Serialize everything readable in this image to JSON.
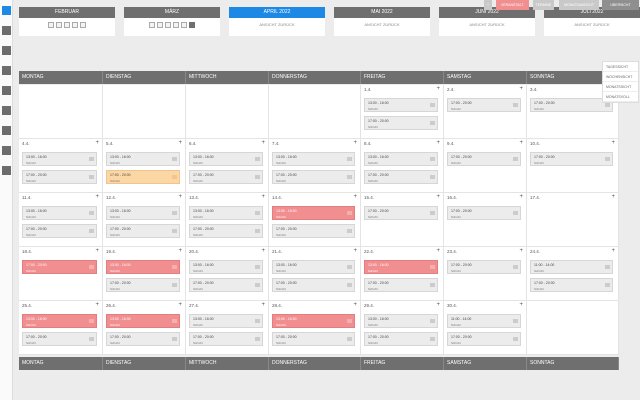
{
  "sidebar": {
    "items": [
      {
        "name": "calendar-icon",
        "active": true
      },
      {
        "name": "building-icon"
      },
      {
        "name": "user-icon"
      },
      {
        "name": "mail-icon"
      },
      {
        "name": "pie-chart-icon"
      },
      {
        "name": "clock-icon"
      },
      {
        "name": "star-icon"
      },
      {
        "name": "gear-icon"
      },
      {
        "name": "logout-icon"
      }
    ]
  },
  "months": [
    {
      "label": "FEBRUAR",
      "sub": "",
      "weeks": [
        "",
        "",
        "",
        "",
        ""
      ],
      "sel": -1,
      "active": false
    },
    {
      "label": "MÄRZ",
      "sub": "",
      "weeks": [
        "",
        "",
        "",
        "",
        "",
        ""
      ],
      "sel": 5,
      "active": false
    },
    {
      "label": "APRIL 2022",
      "sub": "ANSICHT ZURÜCK",
      "weeks": [],
      "sel": -1,
      "active": true
    },
    {
      "label": "MAI 2022",
      "sub": "ANSICHT ZURÜCK",
      "weeks": [],
      "sel": -1,
      "active": false
    },
    {
      "label": "JUNI 2022",
      "sub": "ANSICHT ZURÜCK",
      "weeks": [],
      "sel": -1,
      "active": false
    },
    {
      "label": "JULI 2022",
      "sub": "ANSICHT ZURÜCK",
      "weeks": [],
      "sel": -1,
      "active": false
    }
  ],
  "toolbar": {
    "buttons": [
      {
        "label": "+",
        "color": "#c9c9c9"
      },
      {
        "label": "VERANSTALT.",
        "color": "#f08e90"
      },
      {
        "label": "TERMINE",
        "color": "#c9c9c9"
      },
      {
        "label": "MONATSANSICHT",
        "color": "#c9c9c9"
      },
      {
        "label": "ÜBERSICHT",
        "color": "#8f8f8f"
      }
    ]
  },
  "menu": [
    "TAGESSICHT",
    "WOCHENSICHT",
    "MONATSSICHT",
    "MONATSVOLL"
  ],
  "weekdays": [
    "MONTAG",
    "DIENSTAG",
    "MITTWOCH",
    "DONNERSTAG",
    "FREITAG",
    "SAMSTAG",
    "SONNTAG"
  ],
  "weeks": [
    [
      {
        "day": "",
        "events": []
      },
      {
        "day": "",
        "events": []
      },
      {
        "day": "",
        "events": []
      },
      {
        "day": "",
        "events": []
      },
      {
        "day": "1.4.",
        "events": [
          {
            "time": "13:00 - 16:00",
            "sub": "Schicht",
            "color": "grey"
          },
          {
            "time": "17:00 - 20:00",
            "sub": "Schicht",
            "color": "grey"
          }
        ]
      },
      {
        "day": "2.4.",
        "events": [
          {
            "time": "17:00 - 20:00",
            "sub": "Schicht",
            "color": "grey"
          }
        ]
      },
      {
        "day": "3.4.",
        "events": [
          {
            "time": "17:00 - 20:00",
            "sub": "Schicht",
            "color": "grey"
          }
        ]
      }
    ],
    [
      {
        "day": "4.4.",
        "events": [
          {
            "time": "13:00 - 16:00",
            "sub": "Schicht",
            "color": "grey"
          },
          {
            "time": "17:00 - 20:00",
            "sub": "Schicht",
            "color": "grey"
          }
        ]
      },
      {
        "day": "5.4.",
        "events": [
          {
            "time": "13:00 - 16:00",
            "sub": "Schicht",
            "color": "grey"
          },
          {
            "time": "17:00 - 20:00",
            "sub": "Schicht",
            "color": "orange"
          }
        ]
      },
      {
        "day": "6.4.",
        "events": [
          {
            "time": "13:00 - 16:00",
            "sub": "Schicht",
            "color": "grey"
          },
          {
            "time": "17:00 - 20:00",
            "sub": "Schicht",
            "color": "grey"
          }
        ]
      },
      {
        "day": "7.4.",
        "events": [
          {
            "time": "13:00 - 16:00",
            "sub": "Schicht",
            "color": "grey"
          },
          {
            "time": "17:00 - 20:00",
            "sub": "Schicht",
            "color": "grey"
          }
        ]
      },
      {
        "day": "8.4.",
        "events": [
          {
            "time": "13:00 - 16:00",
            "sub": "Schicht",
            "color": "grey"
          },
          {
            "time": "17:00 - 20:00",
            "sub": "Schicht",
            "color": "grey"
          }
        ]
      },
      {
        "day": "9.4.",
        "events": [
          {
            "time": "17:00 - 20:00",
            "sub": "Schicht",
            "color": "grey"
          }
        ]
      },
      {
        "day": "10.4.",
        "events": [
          {
            "time": "17:00 - 20:00",
            "sub": "Schicht",
            "color": "grey"
          }
        ]
      }
    ],
    [
      {
        "day": "11.4.",
        "events": [
          {
            "time": "13:00 - 16:00",
            "sub": "Schicht",
            "color": "grey"
          },
          {
            "time": "17:00 - 20:00",
            "sub": "Schicht",
            "color": "grey"
          }
        ]
      },
      {
        "day": "12.4.",
        "events": [
          {
            "time": "13:00 - 16:00",
            "sub": "Schicht",
            "color": "grey"
          },
          {
            "time": "17:00 - 20:00",
            "sub": "Schicht",
            "color": "grey"
          }
        ]
      },
      {
        "day": "13.4.",
        "events": [
          {
            "time": "13:00 - 16:00",
            "sub": "Schicht",
            "color": "grey"
          },
          {
            "time": "17:00 - 20:00",
            "sub": "Schicht",
            "color": "grey"
          }
        ]
      },
      {
        "day": "14.4.",
        "events": [
          {
            "time": "13:00 - 16:00",
            "sub": "Schicht",
            "color": "red"
          },
          {
            "time": "17:00 - 20:00",
            "sub": "Schicht",
            "color": "grey"
          }
        ]
      },
      {
        "day": "15.4.",
        "events": [
          {
            "time": "17:00 - 20:00",
            "sub": "Schicht",
            "color": "grey"
          }
        ]
      },
      {
        "day": "16.4.",
        "events": [
          {
            "time": "17:00 - 20:00",
            "sub": "Schicht",
            "color": "grey"
          }
        ]
      },
      {
        "day": "17.4.",
        "events": []
      }
    ],
    [
      {
        "day": "18.4.",
        "events": [
          {
            "time": "17:00 - 20:00",
            "sub": "Schicht",
            "color": "red"
          }
        ]
      },
      {
        "day": "19.4.",
        "events": [
          {
            "time": "13:00 - 16:00",
            "sub": "Schicht",
            "color": "red"
          },
          {
            "time": "17:00 - 20:00",
            "sub": "Schicht",
            "color": "grey"
          }
        ]
      },
      {
        "day": "20.4.",
        "events": [
          {
            "time": "13:00 - 16:00",
            "sub": "Schicht",
            "color": "grey"
          },
          {
            "time": "17:00 - 20:00",
            "sub": "Schicht",
            "color": "grey"
          }
        ]
      },
      {
        "day": "21.4.",
        "events": [
          {
            "time": "13:00 - 16:00",
            "sub": "Schicht",
            "color": "grey"
          },
          {
            "time": "17:00 - 20:00",
            "sub": "Schicht",
            "color": "grey"
          }
        ]
      },
      {
        "day": "22.4.",
        "events": [
          {
            "time": "13:00 - 16:00",
            "sub": "Schicht",
            "color": "red"
          },
          {
            "time": "17:00 - 20:00",
            "sub": "Schicht",
            "color": "grey"
          }
        ]
      },
      {
        "day": "23.4.",
        "events": [
          {
            "time": "17:00 - 20:00",
            "sub": "Schicht",
            "color": "grey"
          }
        ]
      },
      {
        "day": "24.4.",
        "events": [
          {
            "time": "11:00 - 14:00",
            "sub": "Schicht",
            "color": "grey"
          },
          {
            "time": "17:00 - 20:00",
            "sub": "Schicht",
            "color": "grey"
          }
        ]
      }
    ],
    [
      {
        "day": "25.4.",
        "events": [
          {
            "time": "13:00 - 16:00",
            "sub": "Schicht",
            "color": "red"
          },
          {
            "time": "17:00 - 20:00",
            "sub": "Schicht",
            "color": "grey"
          }
        ]
      },
      {
        "day": "26.4.",
        "events": [
          {
            "time": "13:00 - 16:00",
            "sub": "Schicht",
            "color": "red"
          },
          {
            "time": "17:00 - 20:00",
            "sub": "Schicht",
            "color": "grey"
          }
        ]
      },
      {
        "day": "27.4.",
        "events": [
          {
            "time": "13:00 - 16:00",
            "sub": "Schicht",
            "color": "grey"
          },
          {
            "time": "17:00 - 20:00",
            "sub": "Schicht",
            "color": "grey"
          }
        ]
      },
      {
        "day": "28.4.",
        "events": [
          {
            "time": "13:00 - 16:00",
            "sub": "Schicht",
            "color": "red"
          },
          {
            "time": "17:00 - 20:00",
            "sub": "Schicht",
            "color": "grey"
          }
        ]
      },
      {
        "day": "29.4.",
        "events": [
          {
            "time": "13:00 - 16:00",
            "sub": "Schicht",
            "color": "grey"
          },
          {
            "time": "17:00 - 20:00",
            "sub": "Schicht",
            "color": "grey"
          }
        ]
      },
      {
        "day": "30.4.",
        "events": [
          {
            "time": "11:00 - 14:00",
            "sub": "Schicht",
            "color": "grey"
          },
          {
            "time": "17:00 - 20:00",
            "sub": "Schicht",
            "color": "grey"
          }
        ]
      },
      {
        "day": "",
        "events": []
      }
    ]
  ]
}
